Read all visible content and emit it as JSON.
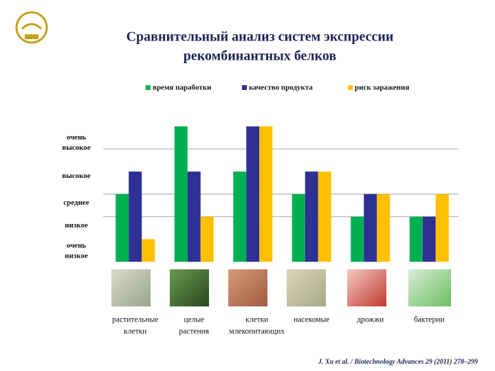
{
  "chart_data": {
    "type": "bar",
    "title": [
      "Сравнительный анализ систем экспрессии",
      "рекомбинантных белков"
    ],
    "categories": [
      [
        "растительные",
        "клетки"
      ],
      [
        "целые",
        "растения"
      ],
      [
        "клетки",
        "млекопитающих"
      ],
      [
        "насекомые"
      ],
      [
        "дрожжи"
      ],
      [
        "бактерии"
      ]
    ],
    "series": [
      {
        "name": "время паработки",
        "color": "#00b050",
        "values": [
          3,
          6,
          4,
          3,
          2,
          2
        ]
      },
      {
        "name": "качество продукта",
        "color": "#2e3192",
        "values": [
          4,
          4,
          6,
          4,
          3,
          2
        ]
      },
      {
        "name": "риск заражения",
        "color": "#ffc000",
        "values": [
          1,
          2,
          6,
          4,
          3,
          3
        ]
      }
    ],
    "ylim": [
      0,
      6
    ],
    "yticks": [
      {
        "value": 0.5,
        "label": "очень низкое"
      },
      {
        "value": 1.6,
        "label": "низкое"
      },
      {
        "value": 2.6,
        "label": "среднее"
      },
      {
        "value": 3.8,
        "label": "высокое"
      },
      {
        "value": 5.3,
        "label": "очень высокое"
      }
    ],
    "grid_lines": [
      2,
      3,
      5
    ],
    "legend": "top",
    "source": "J. Xu et al. / Biotechnology Advances 29 (2011) 278–299"
  }
}
